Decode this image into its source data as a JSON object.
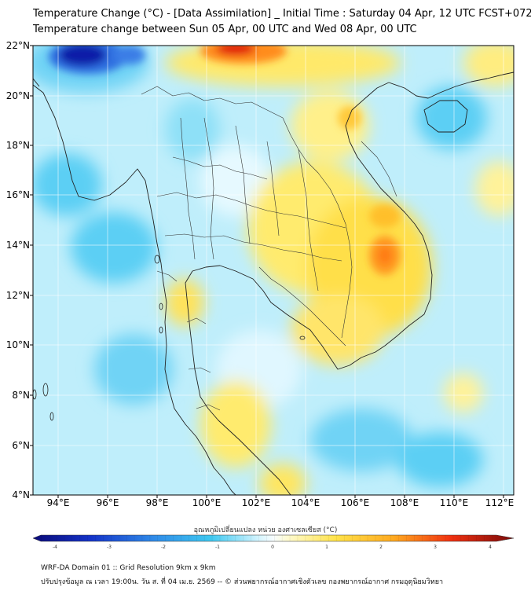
{
  "title_line1": "Temperature Change (°C) - [Data Assimilation] _ Initial Time : Saturday 04 Apr, 12 UTC FCST+072",
  "title_line2": "Temperature change between Sun 05 Apr, 00 UTC and Wed 08 Apr, 00 UTC",
  "lat_labels": [
    "22°N",
    "20°N",
    "18°N",
    "16°N",
    "14°N",
    "12°N",
    "10°N",
    "8°N",
    "6°N",
    "4°N"
  ],
  "lon_labels": [
    "94°E",
    "96°E",
    "98°E",
    "100°E",
    "102°E",
    "104°E",
    "106°E",
    "108°E",
    "110°E",
    "112°E"
  ],
  "colorbar": {
    "label": "อุณหภูมิเปลี่ยนแปลง หน่วย องศาเซลเซียส (°C)",
    "ticks": [
      "-4",
      "-3",
      "-2",
      "-1",
      "0",
      "1",
      "2",
      "3",
      "4"
    ]
  },
  "footer_line1": "WRF-DA Domain 01 :: Grid Resolution 9km x 9km",
  "footer_line2": "ปรับปรุงข้อมูล ณ เวลา 19:00น. วัน ส. ที่ 04 เม.ย. 2569 -- © ส่วนพยากรณ์อากาศเชิงตัวเลข กองพยากรณ์อากาศ กรมอุตุนิยมวิทยา",
  "colors": {
    "coldest": "#0b1fa8",
    "cool": "#3ec8f0",
    "neutral": "#f2fbff",
    "warm": "#ffe24a",
    "hot": "#ff8c1a",
    "hottest": "#e01010",
    "coastline": "#222222"
  }
}
